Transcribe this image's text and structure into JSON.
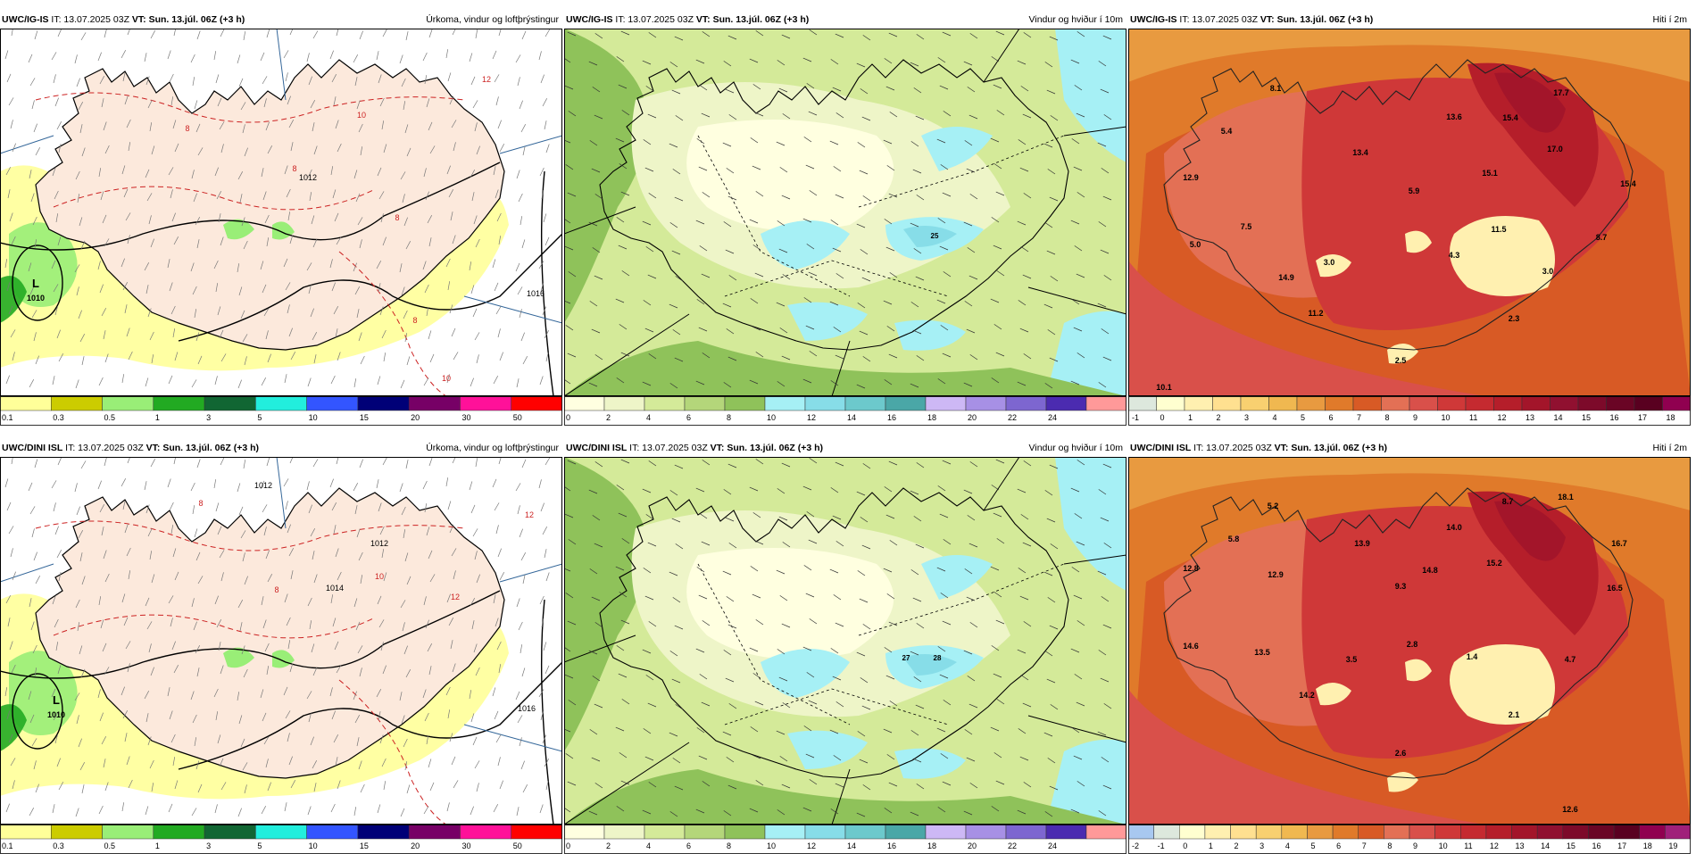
{
  "panels": [
    {
      "id": "p1",
      "model": "UWC/IG-IS",
      "it_label": "IT: 13.07.2025 03Z",
      "vt_label": "VT: Sun. 13.júl. 06Z (+3 h)",
      "title": "Úrkoma, vindur og loftþrýstingur",
      "kind": "precip",
      "colorbar": {
        "colors": [
          "#ffff99",
          "#cccc00",
          "#99ee77",
          "#22aa22",
          "#116633",
          "#22eedd",
          "#3355ff",
          "#000077",
          "#770066",
          "#ff1199",
          "#ff0000"
        ],
        "labels": [
          "0.1",
          "0.3",
          "0.5",
          "1",
          "3",
          "5",
          "10",
          "15",
          "20",
          "30",
          "50"
        ]
      },
      "labels": [
        {
          "t": "L",
          "x": 40,
          "y": 290,
          "b": true,
          "s": 13
        },
        {
          "t": "1010",
          "x": 40,
          "y": 305,
          "b": true,
          "s": 9
        },
        {
          "t": "1012",
          "x": 345,
          "y": 170,
          "b": false,
          "s": 9
        },
        {
          "t": "1016",
          "x": 600,
          "y": 300,
          "b": false,
          "s": 9
        },
        {
          "t": "10",
          "x": 405,
          "y": 100,
          "b": false,
          "s": 9,
          "c": "#cc2222"
        },
        {
          "t": "12",
          "x": 545,
          "y": 60,
          "b": false,
          "s": 9,
          "c": "#cc2222"
        },
        {
          "t": "8",
          "x": 210,
          "y": 115,
          "b": false,
          "s": 9,
          "c": "#cc2222"
        },
        {
          "t": "8",
          "x": 330,
          "y": 160,
          "b": false,
          "s": 9,
          "c": "#cc2222"
        },
        {
          "t": "8",
          "x": 445,
          "y": 215,
          "b": false,
          "s": 9,
          "c": "#cc2222"
        },
        {
          "t": "8",
          "x": 465,
          "y": 330,
          "b": false,
          "s": 9,
          "c": "#cc2222"
        },
        {
          "t": "10",
          "x": 500,
          "y": 395,
          "b": false,
          "s": 9,
          "c": "#cc2222"
        }
      ]
    },
    {
      "id": "p2",
      "model": "UWC/IG-IS",
      "it_label": "IT: 13.07.2025 03Z",
      "vt_label": "VT: Sun. 13.júl. 06Z (+3 h)",
      "title": "Vindur og hviður í 10m",
      "kind": "wind",
      "colorbar": {
        "colors": [
          "#ffffe0",
          "#eef5c8",
          "#d4ea99",
          "#b4d67a",
          "#8fc25a",
          "#a6f0f5",
          "#87dde8",
          "#6cc9cc",
          "#4aa7a7",
          "#cdb8f5",
          "#a790e5",
          "#7d66d0",
          "#4b2bb0",
          "#ff9999"
        ],
        "labels": [
          "0",
          "2",
          "4",
          "6",
          "8",
          "10",
          "12",
          "14",
          "16",
          "18",
          "20",
          "22",
          "24"
        ]
      },
      "labels": [
        {
          "t": "25",
          "x": 415,
          "y": 235,
          "b": true,
          "s": 8
        }
      ]
    },
    {
      "id": "p3",
      "model": "UWC/IG-IS",
      "it_label": "IT: 13.07.2025 03Z",
      "vt_label": "VT: Sun. 13.júl. 06Z (+3 h)",
      "title": "Hiti í 2m",
      "kind": "temp",
      "colorbar": {
        "colors": [
          "#dde8dd",
          "#ffffd0",
          "#fff0b0",
          "#ffe090",
          "#f8d070",
          "#f0b850",
          "#e89a40",
          "#e07a2a",
          "#d85a25",
          "#e37055",
          "#d9504a",
          "#cf3838",
          "#c52a30",
          "#b51e2a",
          "#a3152a",
          "#901030",
          "#7d0a2a",
          "#6a0525",
          "#590020",
          "#900050"
        ],
        "labels": [
          "-1",
          "0",
          "1",
          "2",
          "3",
          "4",
          "5",
          "6",
          "7",
          "8",
          "9",
          "10",
          "11",
          "12",
          "13",
          "14",
          "15",
          "16",
          "17",
          "18"
        ]
      },
      "labels": [
        {
          "t": "8.1",
          "x": 165,
          "y": 70
        },
        {
          "t": "5.4",
          "x": 110,
          "y": 118
        },
        {
          "t": "13.4",
          "x": 260,
          "y": 142
        },
        {
          "t": "13.6",
          "x": 365,
          "y": 102
        },
        {
          "t": "15.4",
          "x": 428,
          "y": 103
        },
        {
          "t": "17.7",
          "x": 485,
          "y": 75
        },
        {
          "t": "17.0",
          "x": 478,
          "y": 138
        },
        {
          "t": "12.9",
          "x": 70,
          "y": 170
        },
        {
          "t": "15.1",
          "x": 405,
          "y": 165
        },
        {
          "t": "15.4",
          "x": 560,
          "y": 177
        },
        {
          "t": "5.9",
          "x": 320,
          "y": 185
        },
        {
          "t": "7.5",
          "x": 132,
          "y": 225
        },
        {
          "t": "11.5",
          "x": 415,
          "y": 228
        },
        {
          "t": "8.7",
          "x": 530,
          "y": 237
        },
        {
          "t": "5.0",
          "x": 75,
          "y": 245
        },
        {
          "t": "3.0",
          "x": 225,
          "y": 265
        },
        {
          "t": "4.3",
          "x": 365,
          "y": 257
        },
        {
          "t": "3.0",
          "x": 470,
          "y": 275
        },
        {
          "t": "14.9",
          "x": 177,
          "y": 282
        },
        {
          "t": "11.2",
          "x": 210,
          "y": 322
        },
        {
          "t": "2.3",
          "x": 432,
          "y": 328
        },
        {
          "t": "2.5",
          "x": 305,
          "y": 375
        },
        {
          "t": "10.1",
          "x": 40,
          "y": 405
        }
      ]
    },
    {
      "id": "p4",
      "model": "UWC/DINI ISL",
      "it_label": "IT: 13.07.2025 03Z",
      "vt_label": "VT: Sun. 13.júl. 06Z (+3 h)",
      "title": "Úrkoma, vindur og loftþrýstingur",
      "kind": "precip",
      "colorbar": {
        "colors": [
          "#ffff99",
          "#cccc00",
          "#99ee77",
          "#22aa22",
          "#116633",
          "#22eedd",
          "#3355ff",
          "#000077",
          "#770066",
          "#ff1199",
          "#ff0000"
        ],
        "labels": [
          "0.1",
          "0.3",
          "0.5",
          "1",
          "3",
          "5",
          "10",
          "15",
          "20",
          "30",
          "50"
        ]
      },
      "labels": [
        {
          "t": "L",
          "x": 63,
          "y": 277,
          "b": true,
          "s": 13
        },
        {
          "t": "1010",
          "x": 63,
          "y": 292,
          "b": true,
          "s": 9
        },
        {
          "t": "1012",
          "x": 295,
          "y": 35,
          "b": false,
          "s": 9
        },
        {
          "t": "1012",
          "x": 425,
          "y": 100,
          "b": false,
          "s": 9
        },
        {
          "t": "1014",
          "x": 375,
          "y": 150,
          "b": false,
          "s": 9
        },
        {
          "t": "1016",
          "x": 590,
          "y": 285,
          "b": false,
          "s": 9
        },
        {
          "t": "8",
          "x": 225,
          "y": 55,
          "b": false,
          "s": 9,
          "c": "#cc2222"
        },
        {
          "t": "12",
          "x": 593,
          "y": 68,
          "b": false,
          "s": 9,
          "c": "#cc2222"
        },
        {
          "t": "10",
          "x": 425,
          "y": 137,
          "b": false,
          "s": 9,
          "c": "#cc2222"
        },
        {
          "t": "12",
          "x": 510,
          "y": 160,
          "b": false,
          "s": 9,
          "c": "#cc2222"
        },
        {
          "t": "8",
          "x": 310,
          "y": 152,
          "b": false,
          "s": 9,
          "c": "#cc2222"
        }
      ]
    },
    {
      "id": "p5",
      "model": "UWC/DINI ISL",
      "it_label": "IT: 13.07.2025 03Z",
      "vt_label": "VT: Sun. 13.júl. 06Z (+3 h)",
      "title": "Vindur og hviður í 10m",
      "kind": "wind",
      "colorbar": {
        "colors": [
          "#ffffe0",
          "#eef5c8",
          "#d4ea99",
          "#b4d67a",
          "#8fc25a",
          "#a6f0f5",
          "#87dde8",
          "#6cc9cc",
          "#4aa7a7",
          "#cdb8f5",
          "#a790e5",
          "#7d66d0",
          "#4b2bb0",
          "#ff9999"
        ],
        "labels": [
          "0",
          "2",
          "4",
          "6",
          "8",
          "10",
          "12",
          "14",
          "16",
          "18",
          "20",
          "22",
          "24"
        ]
      },
      "labels": [
        {
          "t": "27",
          "x": 383,
          "y": 228,
          "b": true,
          "s": 8
        },
        {
          "t": "28",
          "x": 418,
          "y": 228,
          "b": true,
          "s": 8
        }
      ]
    },
    {
      "id": "p6",
      "model": "UWC/DINI ISL",
      "it_label": "IT: 13.07.2025 03Z",
      "vt_label": "VT: Sun. 13.júl. 06Z (+3 h)",
      "title": "Hiti í 2m",
      "kind": "temp",
      "colorbar": {
        "colors": [
          "#a8c8f0",
          "#dde8dd",
          "#ffffd0",
          "#fff0b0",
          "#ffe090",
          "#f8d070",
          "#f0b850",
          "#e89a40",
          "#e07a2a",
          "#d85a25",
          "#e37055",
          "#d9504a",
          "#cf3838",
          "#c52a30",
          "#b51e2a",
          "#a3152a",
          "#901030",
          "#7d0a2a",
          "#6a0525",
          "#590020",
          "#900050",
          "#a0207a"
        ],
        "labels": [
          "-2",
          "-1",
          "0",
          "1",
          "2",
          "3",
          "4",
          "5",
          "6",
          "7",
          "8",
          "9",
          "10",
          "11",
          "12",
          "13",
          "14",
          "15",
          "16",
          "17",
          "18",
          "19"
        ]
      },
      "labels": [
        {
          "t": "5.2",
          "x": 162,
          "y": 58
        },
        {
          "t": "8.7",
          "x": 425,
          "y": 53
        },
        {
          "t": "18.1",
          "x": 490,
          "y": 48
        },
        {
          "t": "14.0",
          "x": 365,
          "y": 82
        },
        {
          "t": "5.8",
          "x": 118,
          "y": 95
        },
        {
          "t": "13.9",
          "x": 262,
          "y": 100
        },
        {
          "t": "16.7",
          "x": 550,
          "y": 100
        },
        {
          "t": "12.8",
          "x": 70,
          "y": 128
        },
        {
          "t": "12.9",
          "x": 165,
          "y": 135
        },
        {
          "t": "14.8",
          "x": 338,
          "y": 130
        },
        {
          "t": "15.2",
          "x": 410,
          "y": 122
        },
        {
          "t": "9.3",
          "x": 305,
          "y": 148
        },
        {
          "t": "16.5",
          "x": 545,
          "y": 150
        },
        {
          "t": "14.6",
          "x": 70,
          "y": 215
        },
        {
          "t": "13.5",
          "x": 150,
          "y": 222
        },
        {
          "t": "2.8",
          "x": 318,
          "y": 213
        },
        {
          "t": "3.5",
          "x": 250,
          "y": 230
        },
        {
          "t": "1.4",
          "x": 385,
          "y": 227
        },
        {
          "t": "4.7",
          "x": 495,
          "y": 230
        },
        {
          "t": "14.2",
          "x": 200,
          "y": 270
        },
        {
          "t": "2.1",
          "x": 432,
          "y": 292
        },
        {
          "t": "2.6",
          "x": 305,
          "y": 335
        },
        {
          "t": "12.6",
          "x": 495,
          "y": 398
        }
      ]
    }
  ]
}
